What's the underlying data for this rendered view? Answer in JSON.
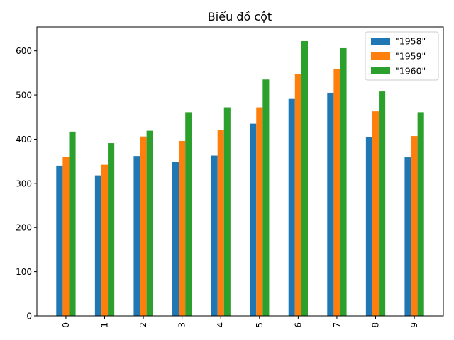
{
  "chart_data": {
    "type": "bar",
    "title": "Biểu đồ cột",
    "xlabel": "",
    "ylabel": "",
    "categories": [
      "0",
      "1",
      "2",
      "3",
      "4",
      "5",
      "6",
      "7",
      "8",
      "9"
    ],
    "series": [
      {
        "name": " \"1958\"",
        "color": "#1f77b4",
        "values": [
          340,
          318,
          362,
          348,
          363,
          435,
          491,
          505,
          404,
          359
        ]
      },
      {
        "name": " \"1959\"",
        "color": "#ff7f0e",
        "values": [
          360,
          342,
          406,
          396,
          420,
          472,
          548,
          559,
          463,
          407
        ]
      },
      {
        "name": " \"1960\"",
        "color": "#2ca02c",
        "values": [
          417,
          391,
          419,
          461,
          472,
          535,
          622,
          606,
          508,
          461
        ]
      }
    ],
    "yticks": [
      0,
      100,
      200,
      300,
      400,
      500,
      600
    ],
    "ylim": [
      0,
      654
    ],
    "legend_position": "top-right",
    "grid": false
  }
}
